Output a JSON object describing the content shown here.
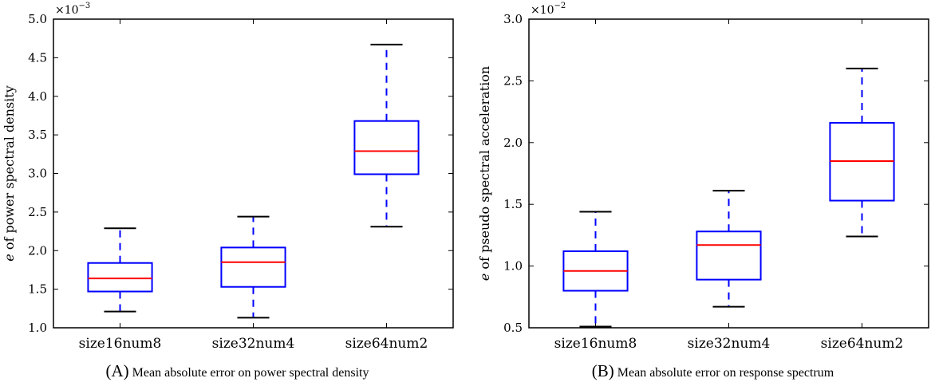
{
  "chart_data": [
    {
      "type": "box",
      "ylabel_var": "e",
      "ylabel_rest": " of power spectral density",
      "caption_letter": "(A)",
      "caption_text": "Mean absolute error on power spectral density",
      "multiplier_base": "×10",
      "multiplier_exp": "−3",
      "ylim": [
        1.0,
        5.0
      ],
      "yticks": [
        "1.0",
        "1.5",
        "2.0",
        "2.5",
        "3.0",
        "3.5",
        "4.0",
        "4.5",
        "5.0"
      ],
      "categories": [
        "size16num8",
        "size32num4",
        "size64num2"
      ],
      "boxes": [
        {
          "whisker_low": 1.21,
          "q1": 1.47,
          "median": 1.64,
          "q3": 1.84,
          "whisker_high": 2.29
        },
        {
          "whisker_low": 1.13,
          "q1": 1.53,
          "median": 1.85,
          "q3": 2.04,
          "whisker_high": 2.44
        },
        {
          "whisker_low": 2.31,
          "q1": 2.99,
          "median": 3.29,
          "q3": 3.68,
          "whisker_high": 4.67
        }
      ],
      "colors": {
        "box": "#0000ff",
        "median": "#ff0000",
        "cap": "#000000"
      }
    },
    {
      "type": "box",
      "ylabel_var": "e",
      "ylabel_rest": " of pseudo spectral acceleration",
      "caption_letter": "(B)",
      "caption_text": "Mean absolute error on response spectrum",
      "multiplier_base": "×10",
      "multiplier_exp": "−2",
      "ylim": [
        0.5,
        3.0
      ],
      "yticks": [
        "0.5",
        "1.0",
        "1.5",
        "2.0",
        "2.5",
        "3.0"
      ],
      "categories": [
        "size16num8",
        "size32num4",
        "size64num2"
      ],
      "boxes": [
        {
          "whisker_low": 0.51,
          "q1": 0.8,
          "median": 0.96,
          "q3": 1.12,
          "whisker_high": 1.44
        },
        {
          "whisker_low": 0.67,
          "q1": 0.89,
          "median": 1.17,
          "q3": 1.28,
          "whisker_high": 1.61
        },
        {
          "whisker_low": 1.24,
          "q1": 1.53,
          "median": 1.85,
          "q3": 2.16,
          "whisker_high": 2.6
        }
      ],
      "colors": {
        "box": "#0000ff",
        "median": "#ff0000",
        "cap": "#000000"
      }
    }
  ]
}
